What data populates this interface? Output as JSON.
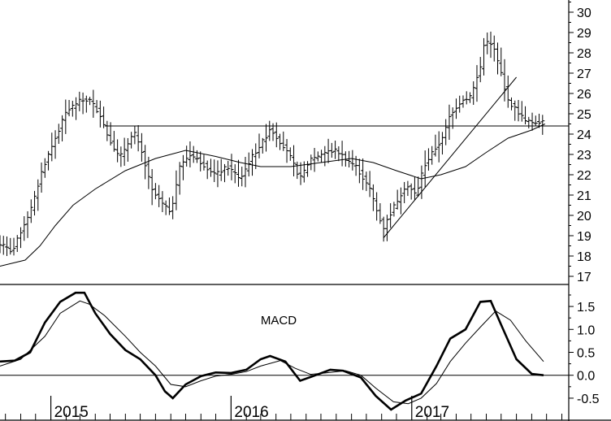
{
  "chart_data": [
    {
      "type": "ohlc",
      "panel": "price",
      "title": "",
      "xlabel": "",
      "ylabel": "",
      "ylim": [
        16.6,
        30.6
      ],
      "y_ticks": [
        17,
        18,
        19,
        20,
        21,
        22,
        23,
        24,
        25,
        26,
        27,
        28,
        29,
        30
      ],
      "x_range": [
        "2014-09-20",
        "2017-11-15"
      ],
      "x_tick_labels": [
        "2015",
        "2016",
        "2017"
      ],
      "x_tick_dates": [
        "2015-01-01",
        "2016-01-01",
        "2017-01-01"
      ],
      "minor_tick_dates": [
        "2014-10-01",
        "2014-11-01",
        "2014-12-01",
        "2015-02-01",
        "2015-03-01",
        "2015-04-01",
        "2015-05-01",
        "2015-06-01",
        "2015-07-01",
        "2015-08-01",
        "2015-09-01",
        "2015-10-01",
        "2015-11-01",
        "2015-12-01",
        "2016-02-01",
        "2016-03-01",
        "2016-04-01",
        "2016-05-01",
        "2016-06-01",
        "2016-07-01",
        "2016-08-01",
        "2016-09-01",
        "2016-10-01",
        "2016-11-01",
        "2016-12-01",
        "2017-02-01",
        "2017-03-01",
        "2017-04-01",
        "2017-05-01",
        "2017-06-01",
        "2017-07-01",
        "2017-08-01",
        "2017-09-01",
        "2017-10-01",
        "2017-11-01"
      ],
      "legend": "none",
      "grid": false,
      "price_key_points": [
        [
          "2014-09-20",
          18.6
        ],
        [
          "2014-10-15",
          18.2
        ],
        [
          "2014-11-01",
          19.2
        ],
        [
          "2014-11-25",
          20.5
        ],
        [
          "2014-12-15",
          22.3
        ],
        [
          "2015-01-10",
          23.8
        ],
        [
          "2015-02-01",
          25.1
        ],
        [
          "2015-02-25",
          25.6
        ],
        [
          "2015-03-20",
          25.7
        ],
        [
          "2015-04-10",
          25.0
        ],
        [
          "2015-04-25",
          24.0
        ],
        [
          "2015-05-20",
          22.8
        ],
        [
          "2015-06-10",
          23.8
        ],
        [
          "2015-06-20",
          24.0
        ],
        [
          "2015-07-05",
          23.0
        ],
        [
          "2015-07-25",
          21.2
        ],
        [
          "2015-08-20",
          20.4
        ],
        [
          "2015-09-01",
          20.2
        ],
        [
          "2015-09-20",
          22.5
        ],
        [
          "2015-10-10",
          23.0
        ],
        [
          "2015-11-01",
          22.6
        ],
        [
          "2015-12-01",
          22.0
        ],
        [
          "2015-12-25",
          22.4
        ],
        [
          "2016-01-20",
          21.8
        ],
        [
          "2016-02-10",
          22.8
        ],
        [
          "2016-03-10",
          23.8
        ],
        [
          "2016-03-20",
          24.3
        ],
        [
          "2016-04-10",
          23.6
        ],
        [
          "2016-05-01",
          22.8
        ],
        [
          "2016-05-20",
          21.8
        ],
        [
          "2016-06-10",
          22.8
        ],
        [
          "2016-07-10",
          23.1
        ],
        [
          "2016-08-01",
          23.2
        ],
        [
          "2016-08-20",
          22.8
        ],
        [
          "2016-09-10",
          22.4
        ],
        [
          "2016-10-10",
          21.2
        ],
        [
          "2016-10-25",
          20.0
        ],
        [
          "2016-11-05",
          19.4
        ],
        [
          "2016-11-25",
          20.4
        ],
        [
          "2016-12-20",
          21.5
        ],
        [
          "2017-01-10",
          21.0
        ],
        [
          "2017-01-25",
          22.4
        ],
        [
          "2017-02-15",
          23.2
        ],
        [
          "2017-03-05",
          23.8
        ],
        [
          "2017-03-20",
          25.0
        ],
        [
          "2017-04-10",
          25.6
        ],
        [
          "2017-05-01",
          25.9
        ],
        [
          "2017-05-20",
          27.3
        ],
        [
          "2017-05-28",
          28.6
        ],
        [
          "2017-06-15",
          28.3
        ],
        [
          "2017-07-01",
          27.0
        ],
        [
          "2017-07-15",
          25.6
        ],
        [
          "2017-08-01",
          25.2
        ],
        [
          "2017-08-20",
          24.6
        ],
        [
          "2017-09-10",
          24.6
        ],
        [
          "2017-09-28",
          24.7
        ]
      ],
      "moving_average": [
        [
          "2014-09-20",
          17.5
        ],
        [
          "2014-11-10",
          17.8
        ],
        [
          "2014-12-10",
          18.5
        ],
        [
          "2015-01-10",
          19.5
        ],
        [
          "2015-02-15",
          20.5
        ],
        [
          "2015-04-01",
          21.3
        ],
        [
          "2015-06-01",
          22.2
        ],
        [
          "2015-08-01",
          22.8
        ],
        [
          "2015-10-01",
          23.2
        ],
        [
          "2015-12-01",
          22.9
        ],
        [
          "2016-01-20",
          22.6
        ],
        [
          "2016-03-01",
          22.4
        ],
        [
          "2016-05-01",
          22.4
        ],
        [
          "2016-07-01",
          22.6
        ],
        [
          "2016-09-01",
          22.8
        ],
        [
          "2016-10-15",
          22.6
        ],
        [
          "2016-12-01",
          22.2
        ],
        [
          "2017-01-20",
          21.8
        ],
        [
          "2017-03-01",
          22.0
        ],
        [
          "2017-04-20",
          22.4
        ],
        [
          "2017-06-01",
          23.1
        ],
        [
          "2017-07-15",
          23.8
        ],
        [
          "2017-09-01",
          24.2
        ],
        [
          "2017-09-28",
          24.5
        ]
      ],
      "horizontal_line": {
        "y": 24.4,
        "from": "2015-04-20",
        "to": "2017-11-15"
      },
      "trendline": {
        "from": [
          "2016-11-05",
          18.9
        ],
        "to": [
          "2017-08-01",
          26.8
        ]
      }
    },
    {
      "type": "line",
      "panel": "indicator",
      "title": "",
      "annotation": "MACD",
      "xlabel": "",
      "ylabel": "",
      "ylim": [
        -0.98,
        1.98
      ],
      "y_ticks": [
        -0.5,
        0.0,
        0.5,
        1.0,
        1.5
      ],
      "y_tick_labels": [
        "-0.5",
        "0.0",
        "0.5",
        "1.0",
        "1.5"
      ],
      "zero_line": 0.0,
      "series": [
        {
          "line": "thick",
          "points": [
            [
              "2014-09-20",
              0.3
            ],
            [
              "2014-10-20",
              0.32
            ],
            [
              "2014-11-20",
              0.5
            ],
            [
              "2014-12-20",
              1.15
            ],
            [
              "2015-01-20",
              1.6
            ],
            [
              "2015-02-20",
              1.8
            ],
            [
              "2015-03-10",
              1.8
            ],
            [
              "2015-04-01",
              1.35
            ],
            [
              "2015-05-01",
              0.9
            ],
            [
              "2015-06-01",
              0.55
            ],
            [
              "2015-07-01",
              0.35
            ],
            [
              "2015-08-01",
              0.0
            ],
            [
              "2015-08-20",
              -0.35
            ],
            [
              "2015-09-05",
              -0.5
            ],
            [
              "2015-10-01",
              -0.2
            ],
            [
              "2015-11-01",
              -0.02
            ],
            [
              "2015-12-01",
              0.06
            ],
            [
              "2016-01-01",
              0.05
            ],
            [
              "2016-02-01",
              0.12
            ],
            [
              "2016-03-01",
              0.35
            ],
            [
              "2016-03-20",
              0.42
            ],
            [
              "2016-04-20",
              0.3
            ],
            [
              "2016-05-20",
              -0.12
            ],
            [
              "2016-06-20",
              0.0
            ],
            [
              "2016-07-20",
              0.12
            ],
            [
              "2016-08-15",
              0.1
            ],
            [
              "2016-09-20",
              -0.05
            ],
            [
              "2016-10-20",
              -0.45
            ],
            [
              "2016-11-20",
              -0.75
            ],
            [
              "2016-12-20",
              -0.55
            ],
            [
              "2017-01-20",
              -0.4
            ],
            [
              "2017-02-20",
              0.2
            ],
            [
              "2017-03-20",
              0.8
            ],
            [
              "2017-04-20",
              1.0
            ],
            [
              "2017-05-20",
              1.6
            ],
            [
              "2017-06-10",
              1.62
            ],
            [
              "2017-07-01",
              1.1
            ],
            [
              "2017-08-01",
              0.35
            ],
            [
              "2017-09-01",
              0.03
            ],
            [
              "2017-09-25",
              0.0
            ]
          ]
        },
        {
          "line": "thin",
          "points": [
            [
              "2014-09-20",
              0.2
            ],
            [
              "2014-11-01",
              0.35
            ],
            [
              "2014-12-20",
              0.85
            ],
            [
              "2015-01-20",
              1.35
            ],
            [
              "2015-03-01",
              1.62
            ],
            [
              "2015-03-20",
              1.55
            ],
            [
              "2015-04-20",
              1.3
            ],
            [
              "2015-06-01",
              0.85
            ],
            [
              "2015-07-01",
              0.5
            ],
            [
              "2015-08-01",
              0.2
            ],
            [
              "2015-09-01",
              -0.2
            ],
            [
              "2015-10-01",
              -0.25
            ],
            [
              "2015-11-01",
              -0.12
            ],
            [
              "2015-12-01",
              -0.02
            ],
            [
              "2016-01-01",
              0.02
            ],
            [
              "2016-02-01",
              0.08
            ],
            [
              "2016-03-01",
              0.2
            ],
            [
              "2016-04-10",
              0.32
            ],
            [
              "2016-05-10",
              0.15
            ],
            [
              "2016-06-10",
              0.02
            ],
            [
              "2016-07-10",
              0.05
            ],
            [
              "2016-08-20",
              0.1
            ],
            [
              "2016-09-20",
              0.0
            ],
            [
              "2016-10-20",
              -0.28
            ],
            [
              "2016-11-25",
              -0.58
            ],
            [
              "2016-12-25",
              -0.62
            ],
            [
              "2017-01-20",
              -0.5
            ],
            [
              "2017-02-20",
              -0.18
            ],
            [
              "2017-03-20",
              0.3
            ],
            [
              "2017-04-20",
              0.7
            ],
            [
              "2017-05-20",
              1.05
            ],
            [
              "2017-06-20",
              1.4
            ],
            [
              "2017-07-20",
              1.2
            ],
            [
              "2017-08-20",
              0.75
            ],
            [
              "2017-09-25",
              0.3
            ]
          ]
        }
      ]
    }
  ]
}
